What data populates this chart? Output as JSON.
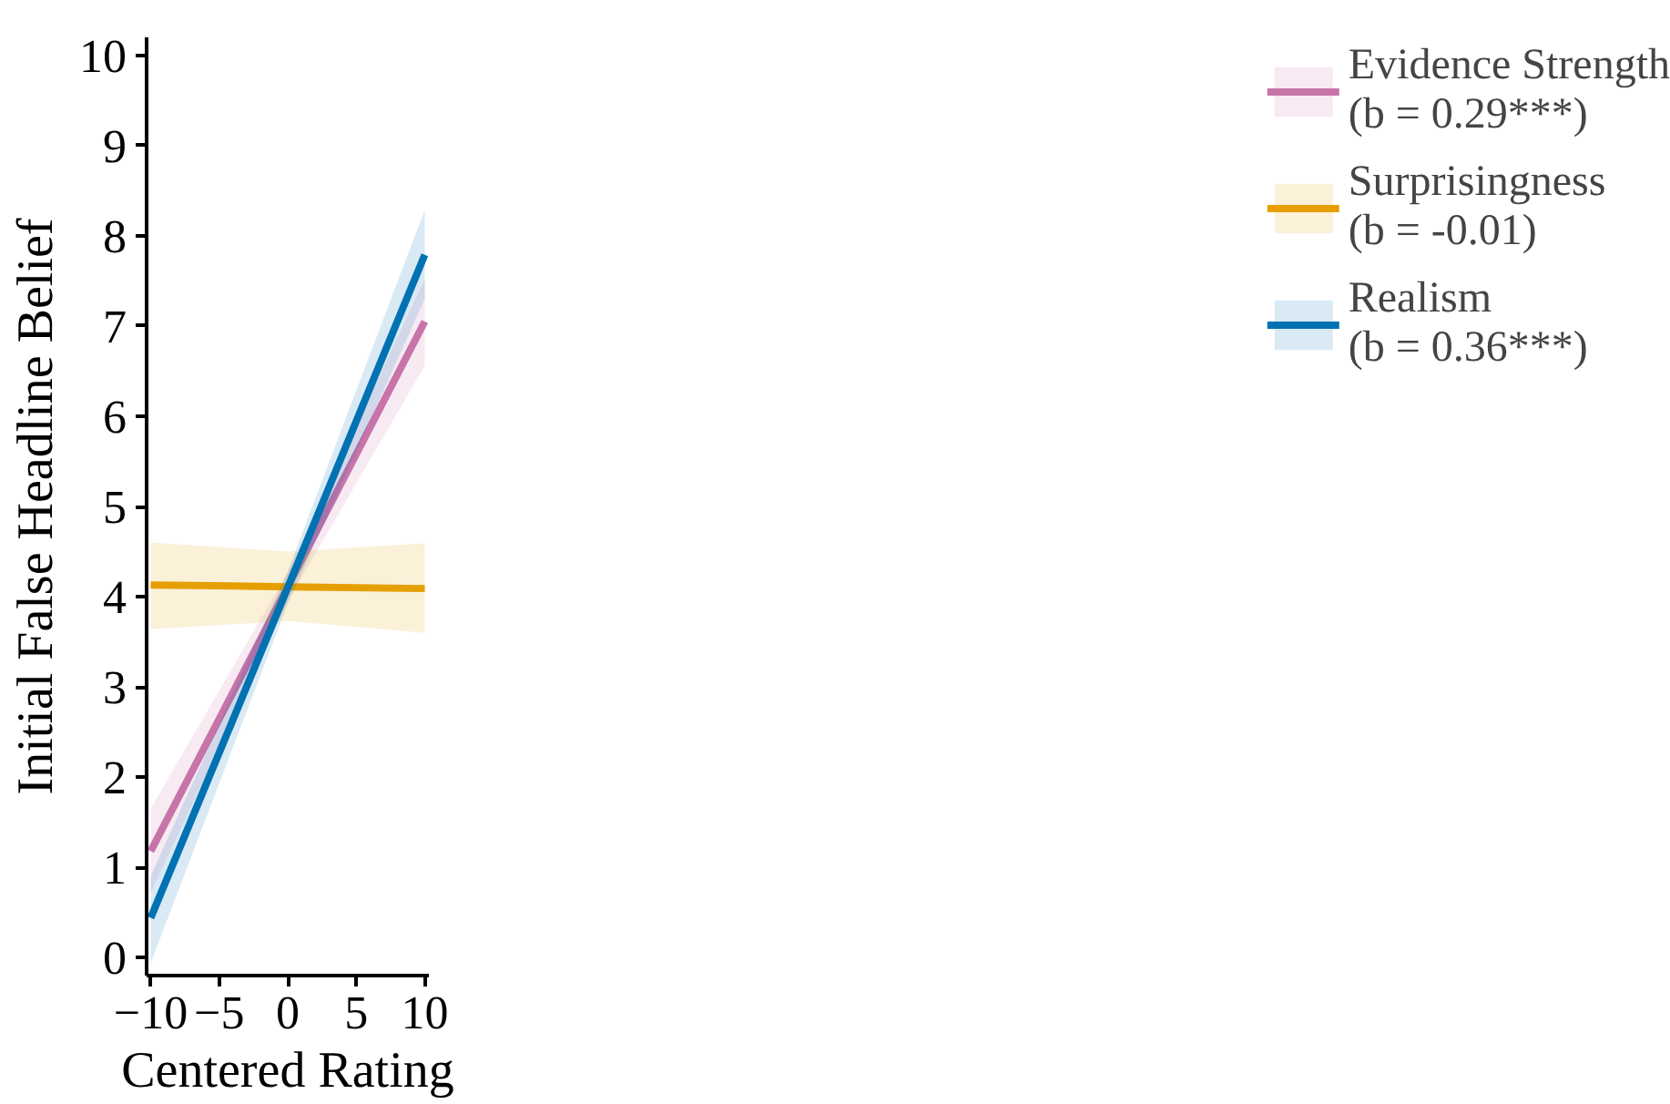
{
  "chart_data": {
    "type": "line",
    "xlabel": "Centered Rating",
    "ylabel": "Initial False Headline Belief",
    "x": [
      -10,
      0,
      10
    ],
    "xlim": [
      -10.3,
      10.3
    ],
    "xticks": [
      -10,
      -5,
      0,
      5,
      10
    ],
    "ylim": [
      -0.2,
      10.2
    ],
    "yticks": [
      0,
      1,
      2,
      3,
      4,
      5,
      6,
      7,
      8,
      9,
      10
    ],
    "grid": false,
    "legend": "right",
    "series": [
      {
        "name": "Evidence Strength\n(b = 0.29***)",
        "color": "#c774a9",
        "values": [
          1.18,
          4.11,
          7.05
        ],
        "lower": [
          0.72,
          3.95,
          6.56
        ],
        "upper": [
          1.65,
          4.27,
          7.52
        ]
      },
      {
        "name": "Surprisingness\n(b = -0.01)",
        "color": "#e69f00",
        "values": [
          4.13,
          4.11,
          4.09
        ],
        "lower": [
          3.64,
          3.73,
          3.6
        ],
        "upper": [
          4.6,
          4.5,
          4.59
        ]
      },
      {
        "name": "Realism\n(b = 0.36***)",
        "color": "#0072b2",
        "values": [
          0.44,
          4.1,
          7.79
        ],
        "lower": [
          -0.06,
          3.92,
          7.3
        ],
        "upper": [
          0.9,
          4.28,
          8.29
        ]
      }
    ]
  }
}
